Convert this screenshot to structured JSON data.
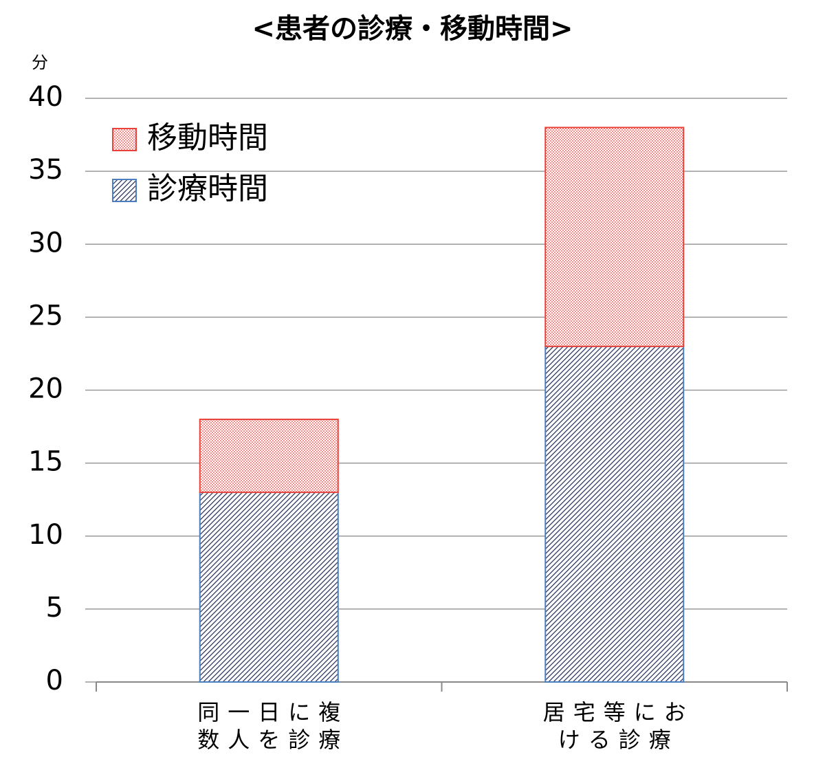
{
  "chart_data": {
    "type": "stacked-bar",
    "title": "<患者の診療・移動時間>",
    "y_label": "分",
    "categories": [
      "同一日に複\n数人を診療",
      "居宅等にお\nける診療"
    ],
    "series": [
      {
        "name": "診療時間",
        "color": "#4a7ec0",
        "pattern": "hatch",
        "values": [
          13,
          23
        ]
      },
      {
        "name": "移動時間",
        "color": "#e8423a",
        "pattern": "dots",
        "values": [
          5,
          15
        ]
      }
    ],
    "ylim": [
      0,
      40
    ],
    "yticks": [
      0,
      5,
      10,
      15,
      20,
      25,
      30,
      35,
      40
    ],
    "grid": true,
    "legend": "top-left"
  }
}
